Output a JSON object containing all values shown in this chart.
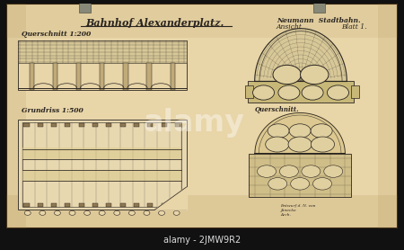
{
  "frame_color": "#2a1a0a",
  "paper_color": "#e8d5a8",
  "paper_color2": "#dfc898",
  "line_color": "#2a2520",
  "line_color_light": "#5a5040",
  "title_text": "Bahnhof Alexanderplatz.",
  "subtitle_q": "Querschnitt 1:200",
  "subtitle_g": "Grundriss 1:500",
  "top_right1": "Neumann  Stadtbahn.",
  "top_right2a": "Ansicht",
  "top_right2b": "Blatt 1.",
  "label_querschnitt": "Querschnitt.",
  "watermark_text": "alamy",
  "bottom_bar_text": "alamy - 2JMW9R2",
  "bottom_bar_color": "#111111",
  "bottom_text_color": "#dddddd",
  "hatch_color": "#5a5040",
  "paper_aged": "#c8b888",
  "clip_color": "#9a9a9a"
}
